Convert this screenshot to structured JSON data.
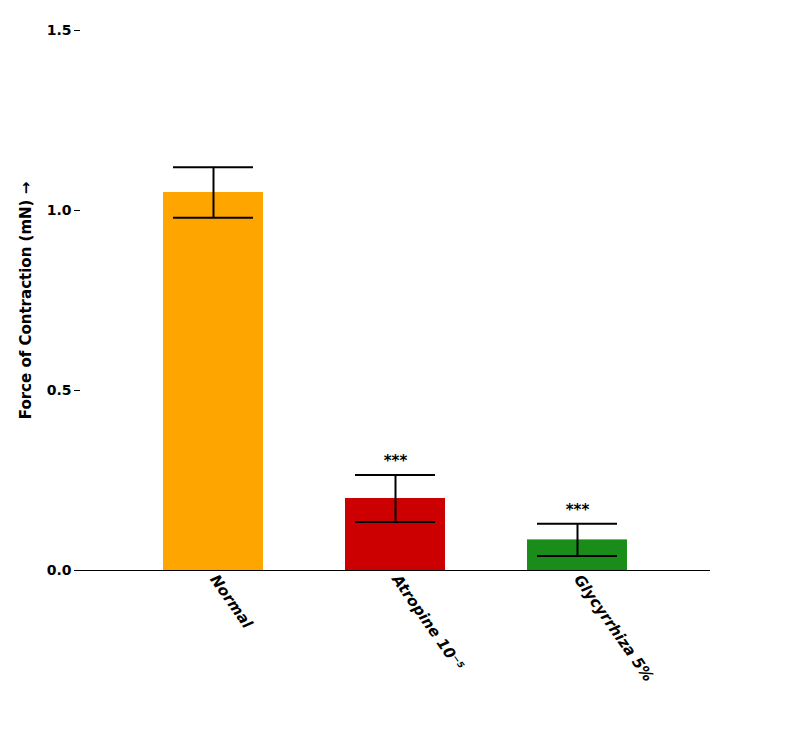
{
  "chart_data": {
    "type": "bar",
    "categories": [
      "Normal",
      "Atropine 10⁻⁵",
      "Glycyrrhiza 5%"
    ],
    "values": [
      1.05,
      0.2,
      0.085
    ],
    "errors": [
      0.07,
      0.065,
      0.045
    ],
    "colors": [
      "#FFA500",
      "#CC0000",
      "#1a8c1a"
    ],
    "significance_labels": [
      null,
      "***",
      "***"
    ],
    "ylabel": "Force of Contraction (mN)",
    "ylim": [
      0,
      1.5
    ],
    "yticks": [
      {
        "value": 0,
        "label": "0.0"
      },
      0.5,
      {
        "value": 1,
        "label": "1.0"
      },
      1.5
    ],
    "grid": false
  }
}
